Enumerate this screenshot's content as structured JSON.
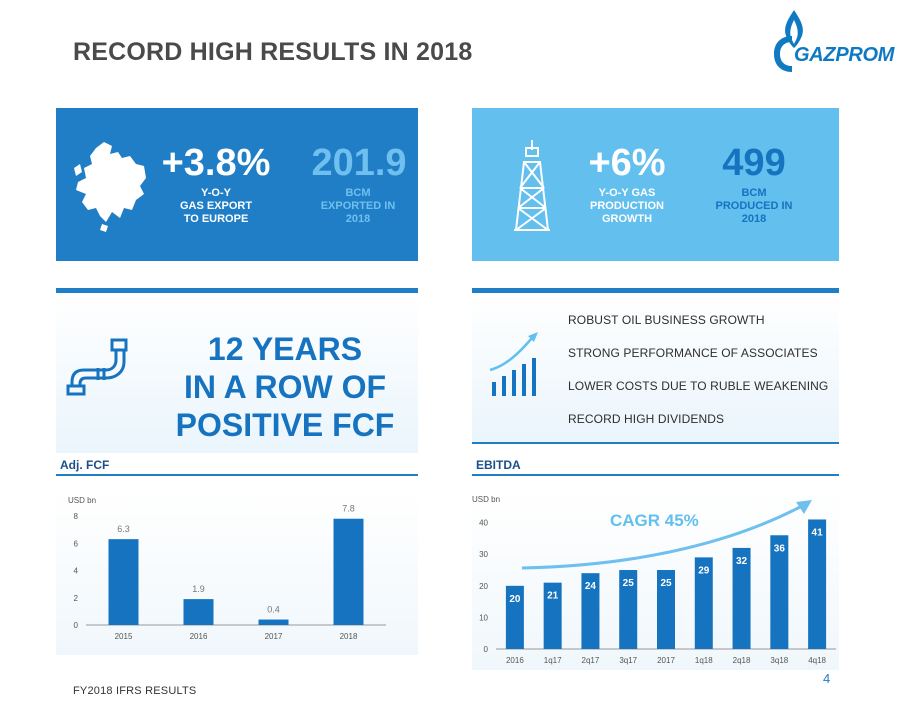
{
  "header": {
    "title": "RECORD HIGH RESULTS IN 2018",
    "logo_text": "GAZPROM"
  },
  "box_export": {
    "stat1_value": "+3.8%",
    "stat1_label": [
      "Y-O-Y",
      "GAS EXPORT",
      "TO EUROPE"
    ],
    "stat2_value": "201.9",
    "stat2_label": [
      "BCM",
      "EXPORTED IN",
      "2018"
    ]
  },
  "box_production": {
    "stat1_value": "+6%",
    "stat1_label": [
      "Y-O-Y GAS",
      "PRODUCTION",
      "GROWTH"
    ],
    "stat2_value": "499",
    "stat2_label": [
      "BCM",
      "PRODUCED IN",
      "2018"
    ]
  },
  "fcf_panel": {
    "lines": [
      "12 YEARS",
      "IN A ROW OF",
      "POSITIVE FCF"
    ]
  },
  "bullets": [
    "ROBUST OIL BUSINESS GROWTH",
    "STRONG PERFORMANCE OF ASSOCIATES",
    "LOWER COSTS DUE TO RUBLE WEAKENING",
    "RECORD HIGH DIVIDENDS"
  ],
  "colors": {
    "primary": "#1f7ec6",
    "light": "#63bfee",
    "bar": "#1673c0",
    "muted_text": "#9fd3f2"
  },
  "chart_data": [
    {
      "type": "bar",
      "title": "Adj. FCF",
      "ylabel": "USD bn",
      "categories": [
        "2015",
        "2016",
        "2017",
        "2018"
      ],
      "values": [
        6.3,
        1.9,
        0.4,
        7.8
      ],
      "labels": [
        "6.3",
        "1.9",
        "0.4",
        "7.8"
      ],
      "yticks": [
        "0",
        "2",
        "4",
        "6",
        "8"
      ],
      "ylim": [
        0,
        8
      ],
      "grid": false
    },
    {
      "type": "bar",
      "title": "EBITDA",
      "ylabel": "USD bn",
      "categories": [
        "2016",
        "1q17",
        "2q17",
        "3q17",
        "2017",
        "1q18",
        "2q18",
        "3q18",
        "4q18"
      ],
      "values": [
        20,
        21,
        24,
        25,
        25,
        29,
        32,
        36,
        41
      ],
      "labels": [
        "20",
        "21",
        "24",
        "25",
        "25",
        "29",
        "32",
        "36",
        "41"
      ],
      "yticks": [
        "0",
        "10",
        "20",
        "30",
        "40"
      ],
      "ylim": [
        0,
        44
      ],
      "annotation": "CAGR 45%",
      "grid": false
    }
  ],
  "footer": {
    "text": "FY2018 IFRS RESULTS",
    "page": "4"
  }
}
